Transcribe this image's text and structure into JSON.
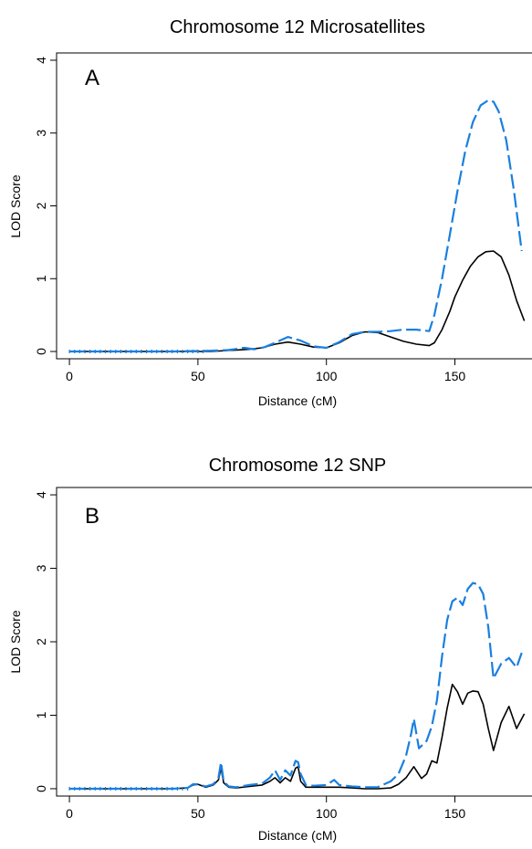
{
  "chart_data": [
    {
      "type": "line",
      "title": "Chromosome 12 Microsatellites",
      "panel_label": "A",
      "xlabel": "Distance (cM)",
      "ylabel": "LOD Score",
      "xlim": [
        -5,
        180
      ],
      "ylim": [
        -0.1,
        4.1
      ],
      "xticks": [
        0,
        50,
        100,
        150
      ],
      "yticks": [
        0,
        1,
        2,
        3,
        4
      ],
      "grid": false,
      "colors": {
        "black": "#000000",
        "blue": "#1a7fe0"
      },
      "series": [
        {
          "style": "solid",
          "color": "#000000",
          "x": [
            0,
            20,
            40,
            55,
            65,
            70,
            75,
            80,
            85,
            90,
            95,
            100,
            105,
            110,
            115,
            120,
            125,
            130,
            135,
            140,
            142,
            145,
            148,
            150,
            153,
            156,
            159,
            162,
            165,
            168,
            171,
            174,
            177
          ],
          "y": [
            0,
            0,
            0,
            0,
            0.02,
            0.03,
            0.05,
            0.1,
            0.13,
            0.1,
            0.06,
            0.05,
            0.12,
            0.22,
            0.27,
            0.26,
            0.2,
            0.14,
            0.1,
            0.08,
            0.12,
            0.3,
            0.55,
            0.75,
            0.98,
            1.17,
            1.3,
            1.37,
            1.38,
            1.3,
            1.05,
            0.7,
            0.42
          ]
        },
        {
          "style": "dashed",
          "color": "#1a7fe0",
          "x": [
            0,
            20,
            40,
            55,
            62,
            68,
            72,
            76,
            80,
            85,
            90,
            95,
            100,
            105,
            110,
            115,
            120,
            125,
            130,
            135,
            140,
            142,
            145,
            148,
            151,
            154,
            157,
            160,
            163,
            165,
            167,
            170,
            173,
            176
          ],
          "y": [
            0,
            0,
            0,
            0.01,
            0.02,
            0.05,
            0.03,
            0.06,
            0.12,
            0.2,
            0.15,
            0.07,
            0.05,
            0.13,
            0.24,
            0.27,
            0.27,
            0.28,
            0.3,
            0.3,
            0.28,
            0.5,
            1.0,
            1.6,
            2.2,
            2.75,
            3.15,
            3.38,
            3.45,
            3.43,
            3.3,
            2.9,
            2.2,
            1.38
          ]
        }
      ]
    },
    {
      "type": "line",
      "title": "Chromosome 12 SNP",
      "panel_label": "B",
      "xlabel": "Distance (cM)",
      "ylabel": "LOD Score",
      "xlim": [
        -5,
        180
      ],
      "ylim": [
        -0.1,
        4.1
      ],
      "xticks": [
        0,
        50,
        100,
        150
      ],
      "yticks": [
        0,
        1,
        2,
        3,
        4
      ],
      "grid": false,
      "colors": {
        "black": "#000000",
        "blue": "#1a7fe0"
      },
      "series": [
        {
          "style": "solid",
          "color": "#000000",
          "x": [
            0,
            20,
            40,
            46,
            48,
            50,
            53,
            56,
            58,
            59,
            60,
            62,
            65,
            70,
            75,
            78,
            80,
            82,
            84,
            86,
            88,
            89,
            90,
            92,
            95,
            100,
            105,
            110,
            115,
            120,
            125,
            128,
            131,
            134,
            137,
            139,
            141,
            143,
            145,
            147,
            149,
            151,
            153,
            155,
            157,
            159,
            161,
            163,
            165,
            168,
            171,
            174,
            177
          ],
          "y": [
            0,
            0,
            0,
            0.01,
            0.05,
            0.06,
            0.02,
            0.05,
            0.12,
            0.28,
            0.08,
            0.02,
            0.01,
            0.03,
            0.05,
            0.1,
            0.15,
            0.08,
            0.15,
            0.1,
            0.28,
            0.3,
            0.1,
            0.02,
            0.02,
            0.02,
            0.02,
            0.01,
            0,
            0,
            0.01,
            0.06,
            0.15,
            0.3,
            0.14,
            0.2,
            0.38,
            0.35,
            0.7,
            1.1,
            1.42,
            1.32,
            1.15,
            1.3,
            1.33,
            1.32,
            1.15,
            0.82,
            0.52,
            0.9,
            1.12,
            0.82,
            1.02
          ]
        },
        {
          "style": "dashed",
          "color": "#1a7fe0",
          "x": [
            0,
            20,
            40,
            46,
            48,
            50,
            53,
            56,
            58,
            59,
            60,
            62,
            65,
            70,
            75,
            78,
            80,
            82,
            84,
            86,
            88,
            89,
            90,
            92,
            95,
            100,
            103,
            105,
            110,
            115,
            120,
            125,
            128,
            131,
            133,
            134,
            136,
            139,
            141,
            143,
            145,
            147,
            149,
            151,
            153,
            155,
            157,
            159,
            161,
            163,
            165,
            168,
            171,
            174,
            175,
            176
          ],
          "y": [
            0,
            0,
            0,
            0.01,
            0.06,
            0.06,
            0.03,
            0.06,
            0.15,
            0.36,
            0.1,
            0.03,
            0.02,
            0.05,
            0.07,
            0.15,
            0.25,
            0.12,
            0.25,
            0.18,
            0.38,
            0.36,
            0.2,
            0.05,
            0.04,
            0.05,
            0.12,
            0.05,
            0.03,
            0.02,
            0.02,
            0.1,
            0.2,
            0.45,
            0.75,
            0.95,
            0.55,
            0.65,
            0.85,
            1.2,
            1.8,
            2.3,
            2.55,
            2.6,
            2.5,
            2.72,
            2.8,
            2.78,
            2.65,
            2.2,
            1.5,
            1.7,
            1.78,
            1.65,
            1.75,
            1.85
          ]
        }
      ]
    }
  ]
}
